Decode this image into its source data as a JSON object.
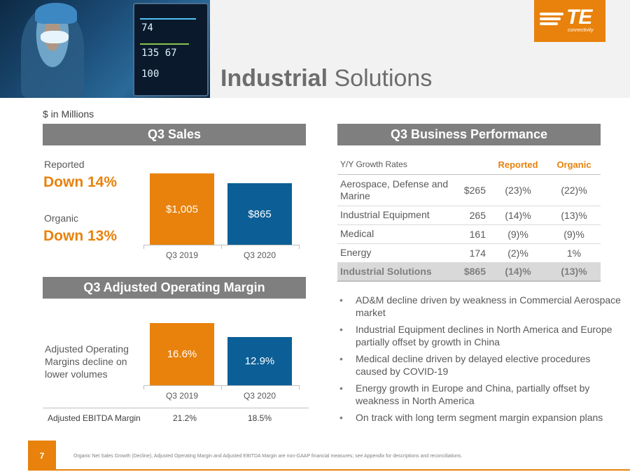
{
  "header": {
    "title_bold": "Industrial",
    "title_rest": " Solutions",
    "logo": {
      "mark": "TE",
      "sub": "connectivity",
      "color": "#e8820c"
    },
    "monitor_readout": {
      "top": "74",
      "mid": "135 67",
      "bottom": "100"
    }
  },
  "units": "$ in Millions",
  "sales": {
    "section_title": "Q3 Sales",
    "reported_label": "Reported",
    "reported_value": "Down 14%",
    "organic_label": "Organic",
    "organic_value": "Down 13%",
    "bars": [
      {
        "category": "Q3 2019",
        "value": 1005,
        "label": "$1,005",
        "color": "#e8820c"
      },
      {
        "category": "Q3 2020",
        "value": 865,
        "label": "$865",
        "color": "#0b5f96"
      }
    ]
  },
  "margin": {
    "section_title": "Q3 Adjusted Operating Margin",
    "note": "Adjusted Operating Margins decline on lower volumes",
    "bars": [
      {
        "category": "Q3 2019",
        "value": 16.6,
        "label": "16.6%",
        "color": "#e8820c"
      },
      {
        "category": "Q3 2020",
        "value": 12.9,
        "label": "12.9%",
        "color": "#0b5f96"
      }
    ],
    "ebitda": {
      "label": "Adjusted EBITDA Margin",
      "q3_2019": "21.2%",
      "q3_2020": "18.5%"
    }
  },
  "performance": {
    "section_title": "Q3 Business Performance",
    "headers": {
      "growth": "Y/Y Growth Rates",
      "reported": "Reported",
      "organic": "Organic"
    },
    "rows": [
      {
        "name": "Aerospace, Defense and Marine",
        "sales": "$265",
        "reported": "(23)%",
        "organic": "(22)%"
      },
      {
        "name": "Industrial Equipment",
        "sales": "265",
        "reported": "(14)%",
        "organic": "(13)%"
      },
      {
        "name": "Medical",
        "sales": "161",
        "reported": "(9)%",
        "organic": "(9)%"
      },
      {
        "name": "Energy",
        "sales": "174",
        "reported": "(2)%",
        "organic": "1%"
      }
    ],
    "total": {
      "name": "Industrial Solutions",
      "sales": "$865",
      "reported": "(14)%",
      "organic": "(13)%"
    }
  },
  "bullets": [
    "AD&M decline driven by weakness in Commercial Aerospace market",
    "Industrial Equipment declines in North America and Europe partially offset by growth in China",
    "Medical decline driven by delayed elective procedures caused by COVID-19",
    "Energy growth in Europe and China, partially offset by weakness in North America",
    "On track with long term segment margin expansion plans"
  ],
  "footer": {
    "page_number": "7",
    "footnote": "Organic Net Sales Growth (Decline), Adjusted Operating Margin and Adjusted EBITDA Margin are non-GAAP financial measures; see Appendix for descriptions and reconciliations."
  },
  "chart_data": [
    {
      "type": "bar",
      "title": "Q3 Sales",
      "categories": [
        "Q3 2019",
        "Q3 2020"
      ],
      "values": [
        1005,
        865
      ],
      "data_labels": [
        "$1,005",
        "$865"
      ],
      "ylim": [
        0,
        1005
      ]
    },
    {
      "type": "bar",
      "title": "Q3 Adjusted Operating Margin",
      "categories": [
        "Q3 2019",
        "Q3 2020"
      ],
      "values": [
        16.6,
        12.9
      ],
      "data_labels": [
        "16.6%",
        "12.9%"
      ],
      "ylim": [
        0,
        16.6
      ]
    }
  ]
}
